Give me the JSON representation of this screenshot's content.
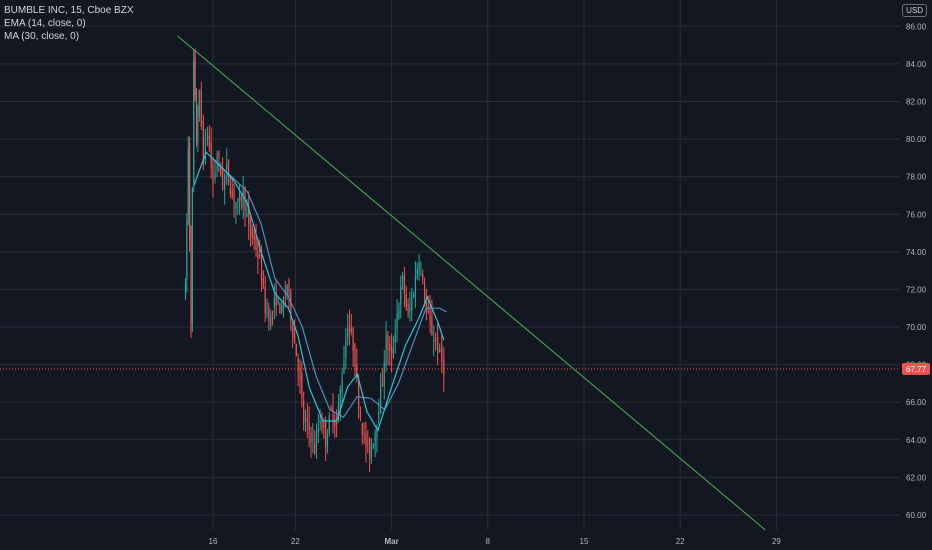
{
  "legend": {
    "symbol": "BUMBLE INC, 15, Cboe BZX",
    "ema": "EMA (14, close, 0)",
    "ma": "MA (30, close, 0)"
  },
  "currency": "USD",
  "colors": {
    "background": "#131722",
    "grid": "#2a2e39",
    "axis_text": "#b2b5be",
    "up": "#26a69a",
    "down": "#ef5350",
    "ema": "#26c6da",
    "ma": "#4c8fbd",
    "trendline": "#4caf50",
    "last_price": "#ef5350"
  },
  "chart_data": {
    "type": "candlestick",
    "interval": "15",
    "ylim": [
      59.2,
      87.4
    ],
    "y_ticks": [
      "60.00",
      "62.00",
      "64.00",
      "66.00",
      "68.00",
      "70.00",
      "72.00",
      "74.00",
      "76.00",
      "78.00",
      "80.00",
      "82.00",
      "84.00",
      "86.00"
    ],
    "x_ticks": [
      "16",
      "22",
      "Mar",
      "8",
      "15",
      "22",
      "29"
    ],
    "x_tick_days": [
      16,
      22,
      29,
      36,
      43,
      50,
      57
    ],
    "x_range_days": [
      0.5,
      66
    ],
    "last_price": "67.77",
    "last_price_value": 67.77,
    "price_path": [
      [
        14.0,
        72.0
      ],
      [
        14.2,
        79.5
      ],
      [
        14.4,
        70.2
      ],
      [
        14.6,
        84.0
      ],
      [
        14.8,
        80.0
      ],
      [
        15.0,
        82.3
      ],
      [
        15.3,
        79.0
      ],
      [
        15.6,
        80.5
      ],
      [
        16.0,
        77.5
      ],
      [
        16.3,
        79.2
      ],
      [
        16.7,
        77.6
      ],
      [
        17.0,
        78.4
      ],
      [
        17.4,
        77.0
      ],
      [
        17.8,
        76.5
      ],
      [
        18.2,
        77.2
      ],
      [
        18.6,
        75.2
      ],
      [
        19.0,
        74.6
      ],
      [
        19.4,
        73.5
      ],
      [
        19.8,
        71.0
      ],
      [
        20.2,
        70.5
      ],
      [
        20.6,
        71.5
      ],
      [
        21.0,
        70.8
      ],
      [
        21.4,
        72.3
      ],
      [
        21.8,
        69.8
      ],
      [
        22.2,
        68.0
      ],
      [
        22.6,
        65.0
      ],
      [
        23.0,
        64.5
      ],
      [
        23.4,
        63.5
      ],
      [
        23.8,
        65.2
      ],
      [
        24.2,
        64.0
      ],
      [
        24.6,
        65.5
      ],
      [
        25.0,
        64.8
      ],
      [
        25.4,
        67.5
      ],
      [
        25.8,
        70.2
      ],
      [
        26.2,
        69.0
      ],
      [
        26.6,
        66.0
      ],
      [
        27.0,
        64.0
      ],
      [
        27.4,
        63.2
      ],
      [
        27.8,
        64.5
      ],
      [
        28.2,
        66.5
      ],
      [
        28.6,
        69.3
      ],
      [
        29.0,
        68.2
      ],
      [
        29.4,
        70.8
      ],
      [
        29.8,
        72.5
      ],
      [
        30.2,
        70.5
      ],
      [
        30.6,
        72.0
      ],
      [
        31.0,
        73.8
      ],
      [
        31.4,
        71.5
      ],
      [
        31.8,
        70.0
      ],
      [
        32.2,
        69.2
      ],
      [
        32.5,
        68.5
      ],
      [
        32.8,
        67.8
      ]
    ],
    "ema_path": [
      [
        14.6,
        77.5
      ],
      [
        15.5,
        79.3
      ],
      [
        16.5,
        78.6
      ],
      [
        17.5,
        77.8
      ],
      [
        18.5,
        76.6
      ],
      [
        19.5,
        74.0
      ],
      [
        20.5,
        71.8
      ],
      [
        21.5,
        71.0
      ],
      [
        22.2,
        69.5
      ],
      [
        23.0,
        66.8
      ],
      [
        24.0,
        65.0
      ],
      [
        25.0,
        65.0
      ],
      [
        25.8,
        66.8
      ],
      [
        26.5,
        67.5
      ],
      [
        27.2,
        65.5
      ],
      [
        28.0,
        64.5
      ],
      [
        29.0,
        66.8
      ],
      [
        30.0,
        69.0
      ],
      [
        31.0,
        70.5
      ],
      [
        31.6,
        71.6
      ],
      [
        32.4,
        70.2
      ],
      [
        32.8,
        69.3
      ]
    ],
    "ma_path": [
      [
        16.3,
        78.7
      ],
      [
        17.5,
        77.9
      ],
      [
        18.5,
        77.2
      ],
      [
        19.5,
        75.5
      ],
      [
        20.5,
        72.6
      ],
      [
        21.5,
        71.6
      ],
      [
        22.5,
        70.0
      ],
      [
        23.5,
        67.4
      ],
      [
        24.5,
        65.6
      ],
      [
        25.5,
        65.2
      ],
      [
        26.5,
        66.3
      ],
      [
        27.5,
        66.2
      ],
      [
        28.5,
        65.6
      ],
      [
        29.5,
        67.0
      ],
      [
        30.5,
        69.0
      ],
      [
        31.5,
        71.0
      ],
      [
        32.5,
        71.0
      ],
      [
        33.0,
        70.8
      ]
    ],
    "trendline": [
      [
        13.4,
        85.5
      ],
      [
        56.2,
        59.2
      ]
    ]
  }
}
